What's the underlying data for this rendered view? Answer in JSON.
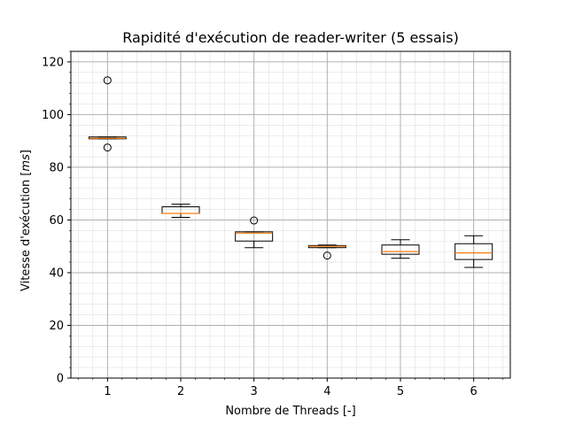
{
  "chart_data": {
    "type": "boxplot",
    "title": "Rapidité d'exécution de reader-writer (5 essais)",
    "xlabel": "Nombre de Threads [-]",
    "ylabel_prefix": "Vitesse d'exécution [",
    "ylabel_unit": "ms",
    "ylabel_suffix": "]",
    "ylim": [
      0,
      124
    ],
    "xlim": [
      0.5,
      6.5
    ],
    "yticks": [
      0,
      20,
      40,
      60,
      80,
      100,
      120
    ],
    "xticks": [
      1,
      2,
      3,
      4,
      5,
      6
    ],
    "grid": true,
    "minor_grid": true,
    "series": [
      {
        "x": 1,
        "whisker_low": 90.8,
        "q1": 90.8,
        "median": 91.0,
        "q3": 91.5,
        "whisker_high": 91.5,
        "outliers": [
          113.0,
          87.5
        ]
      },
      {
        "x": 2,
        "whisker_low": 61.0,
        "q1": 62.5,
        "median": 62.5,
        "q3": 65.0,
        "whisker_high": 66.0,
        "outliers": []
      },
      {
        "x": 3,
        "whisker_low": 49.5,
        "q1": 52.0,
        "median": 55.0,
        "q3": 55.5,
        "whisker_high": 55.5,
        "outliers": [
          59.8
        ]
      },
      {
        "x": 4,
        "whisker_low": 49.5,
        "q1": 49.5,
        "median": 50.0,
        "q3": 50.3,
        "whisker_high": 50.5,
        "outliers": [
          46.5
        ]
      },
      {
        "x": 5,
        "whisker_low": 45.5,
        "q1": 47.0,
        "median": 48.0,
        "q3": 50.5,
        "whisker_high": 52.5,
        "outliers": []
      },
      {
        "x": 6,
        "whisker_low": 42.0,
        "q1": 45.0,
        "median": 47.5,
        "q3": 51.0,
        "whisker_high": 54.0,
        "outliers": []
      }
    ],
    "box_color": "#000000",
    "median_color": "#ff7f0e",
    "grid_color": "#b0b0b0",
    "minor_grid_color": "#e0e0e0"
  }
}
